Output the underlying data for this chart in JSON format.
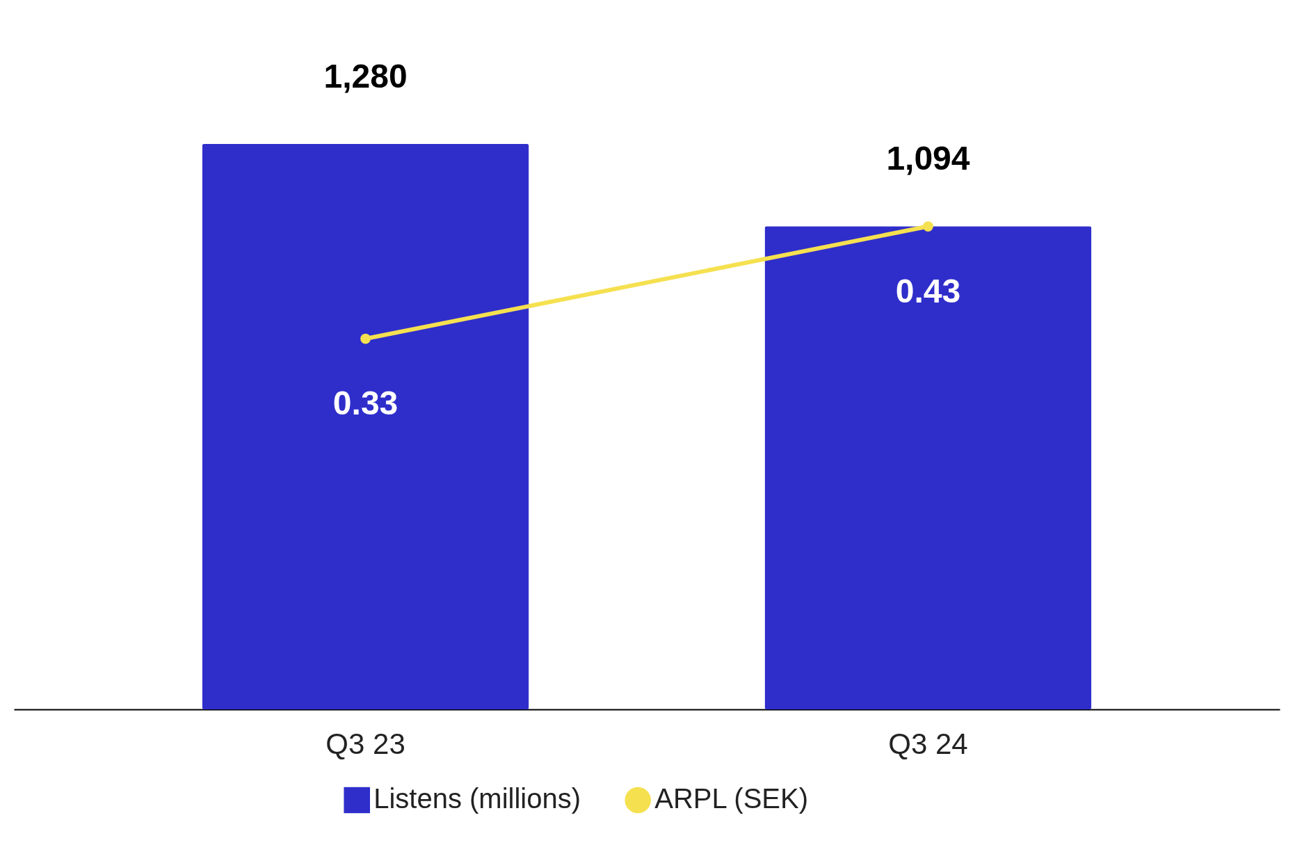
{
  "chart_data": {
    "type": "bar",
    "categories": [
      "Q3 23",
      "Q3 24"
    ],
    "data_labels": true,
    "legend": "bottom",
    "grid": false,
    "series": [
      {
        "name": "Listens (millions)",
        "color": "#2f2ecb",
        "values": [
          1280,
          1094
        ],
        "value_labels": [
          "1,280",
          "1,094"
        ]
      },
      {
        "name": "ARPL (SEK)",
        "type": "line",
        "axis": "y2",
        "color": "#f5e050",
        "marker": "circle",
        "values": [
          0.33,
          0.43
        ]
      }
    ]
  }
}
